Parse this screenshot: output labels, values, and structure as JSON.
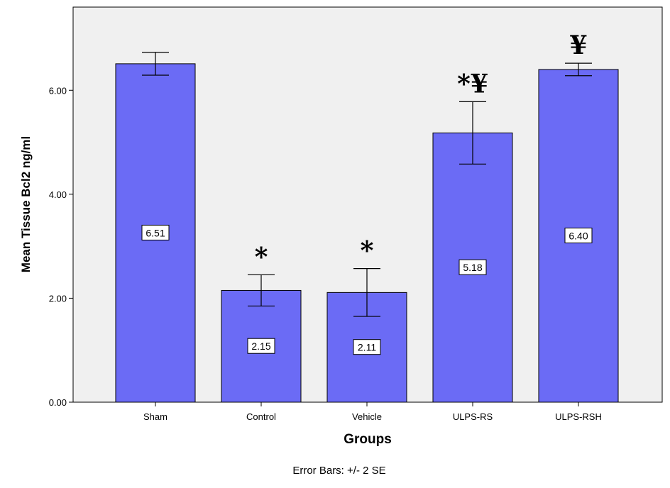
{
  "chart_data": {
    "type": "bar",
    "categories": [
      "Sham",
      "Control",
      "Vehicle",
      "ULPS-RS",
      "ULPS-RSH"
    ],
    "values": [
      6.51,
      2.15,
      2.11,
      5.18,
      6.4
    ],
    "value_labels": [
      "6.51",
      "2.15",
      "2.11",
      "5.18",
      "6.40"
    ],
    "error_low": [
      6.29,
      1.85,
      1.65,
      4.58,
      6.28
    ],
    "error_high": [
      6.73,
      2.45,
      2.57,
      5.78,
      6.52
    ],
    "annotations": [
      "",
      "*",
      "*",
      "*¥",
      "¥"
    ],
    "xlabel": "Groups",
    "ylabel": "Mean Tissue Bcl2 ng/ml",
    "ylim": [
      0,
      7.6
    ],
    "yticks": [
      0,
      2,
      4,
      6
    ],
    "ytick_labels": [
      "0.00",
      "2.00",
      "4.00",
      "6.00"
    ],
    "footnote": "Error Bars: +/- 2 SE",
    "grid": false,
    "legend": "none",
    "colors": {
      "bar": "#6B6BF5",
      "plot_background": "#F0F0F0",
      "page_background": "#FFFFFF"
    }
  }
}
